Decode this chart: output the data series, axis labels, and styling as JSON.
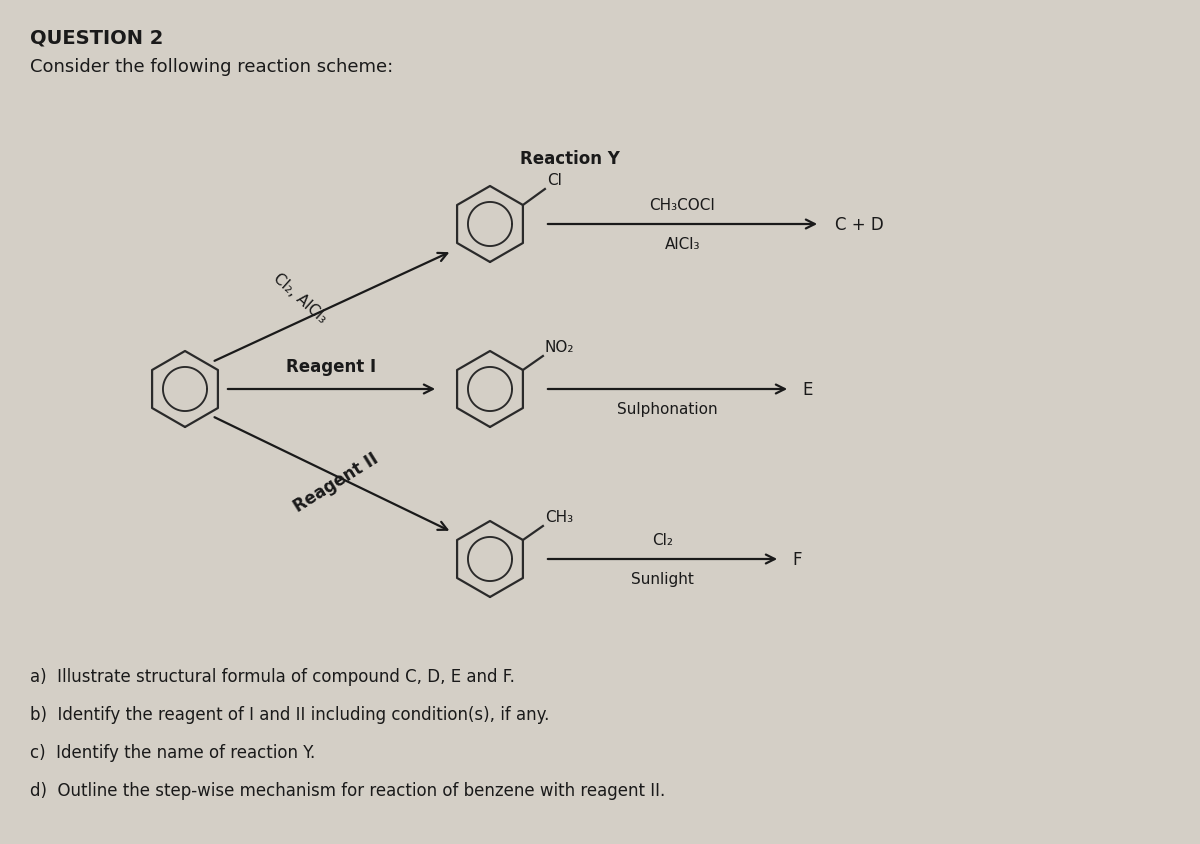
{
  "title": "QUESTION 2",
  "subtitle": "Consider the following reaction scheme:",
  "background_color": "#d4cfc6",
  "text_color": "#1a1a1a",
  "questions": [
    "a)  Illustrate structural formula of compound C, D, E and F.",
    "b)  Identify the reagent of I and II including condition(s), if any.",
    "c)  Identify the name of reaction Y.",
    "d)  Outline the step-wise mechanism for reaction of benzene with reagent II."
  ],
  "reaction_y_label": "Reaction Y",
  "top_reaction_above": "CH₃COCI",
  "top_reaction_below": "AlCl₃",
  "top_product": "C + D",
  "middle_reaction_label": "Sulphonation",
  "middle_product": "E",
  "bottom_reaction_above": "Cl₂",
  "bottom_reaction_below": "Sunlight",
  "bottom_product": "F",
  "reagent_I_label": "Reagent I",
  "reagent_II_label": "Reagent II",
  "Cl2_AlCl3_label": "Cl₂, AlCl₃"
}
